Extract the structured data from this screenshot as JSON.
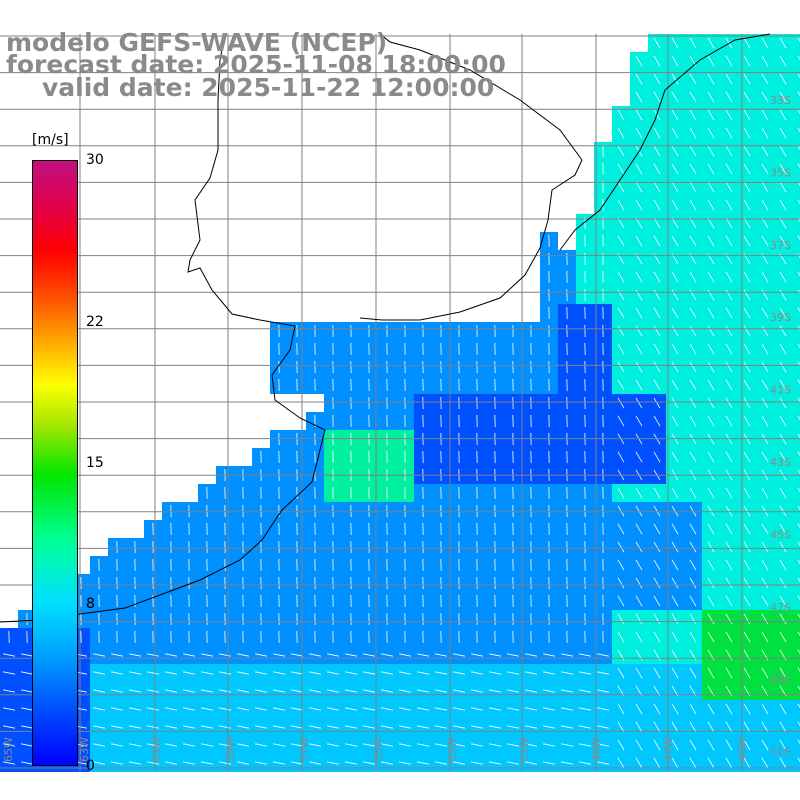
{
  "title": {
    "model": "modelo GEFS-WAVE (NCEP)",
    "forecast": "forecast date: 2025-11-08 18:00:00",
    "valid": "valid date: 2025-11-22 12:00:00"
  },
  "colorbar": {
    "unit": "[m/s]",
    "ticks": [
      "30",
      "22",
      "15",
      "8",
      "0"
    ],
    "tick_values": [
      30,
      22,
      15,
      8,
      0
    ],
    "min": 0,
    "max": 30
  },
  "colors": {
    "land": "#ffffff",
    "grid": "#808080",
    "coast": "#000000",
    "arrow": "#ffffff"
  },
  "map": {
    "lon_labels": [
      "65W",
      "63W",
      "61W",
      "59W",
      "57W",
      "55W",
      "53W",
      "51W",
      "49W",
      "47W",
      "45W"
    ],
    "lat_labels": [
      "33S",
      "35S",
      "37S",
      "39S",
      "41S",
      "43S",
      "45S",
      "47S",
      "49S",
      "51S"
    ],
    "wind_field": "10 m wind speed (m/s) with direction arrows"
  }
}
